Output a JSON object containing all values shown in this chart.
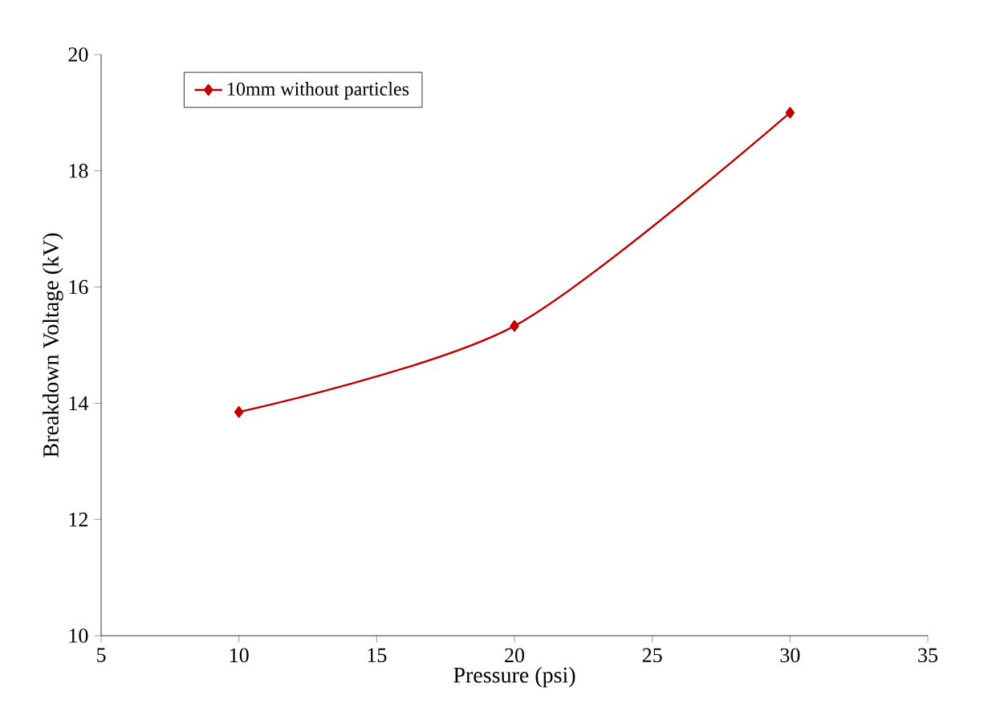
{
  "chart_data": {
    "type": "line",
    "xlabel": "Pressure (psi)",
    "ylabel": "Breakdown Voltage (kV)",
    "xlim": [
      5,
      35
    ],
    "xticks": [
      5,
      10,
      15,
      20,
      25,
      30,
      35
    ],
    "ylim": [
      10,
      20
    ],
    "yticks": [
      10,
      12,
      14,
      16,
      18,
      20
    ],
    "x": [
      10,
      20,
      30
    ],
    "series": [
      {
        "name": "10mm without particles",
        "color": "#c00000",
        "values": [
          13.85,
          15.33,
          19.0
        ]
      }
    ],
    "marker": "diamond",
    "line_style": "solid",
    "legend": "top left",
    "grid": false
  }
}
